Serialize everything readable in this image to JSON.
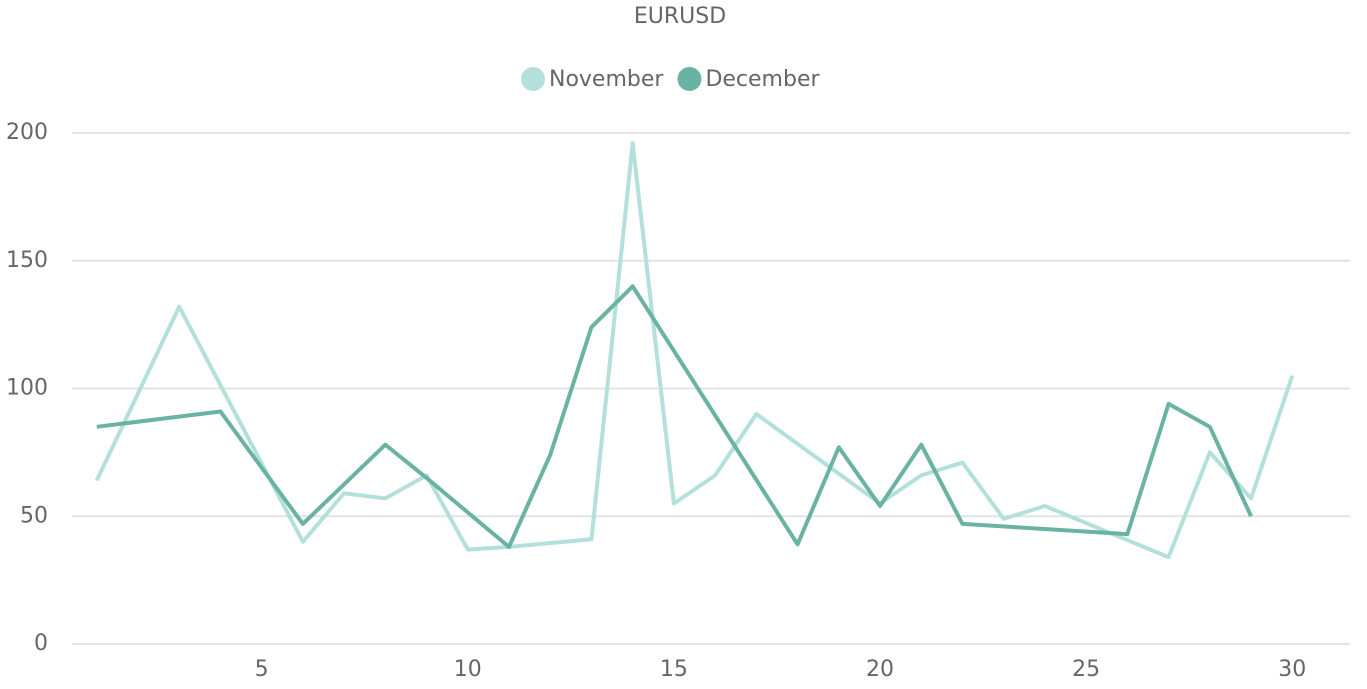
{
  "chart_data": {
    "type": "line",
    "title": "EURUSD",
    "series": [
      {
        "name": "November",
        "color": "#b3e0da",
        "x": [
          1,
          3,
          6,
          7,
          8,
          9,
          10,
          11,
          13,
          14,
          15,
          16,
          17,
          20,
          21,
          22,
          23,
          24,
          27,
          28,
          29,
          30
        ],
        "values": [
          64,
          132,
          40,
          59,
          57,
          66,
          37,
          38,
          41,
          196,
          55,
          66,
          90,
          55,
          66,
          71,
          49,
          54,
          34,
          75,
          57,
          105
        ]
      },
      {
        "name": "December",
        "color": "#6ab3a3",
        "x": [
          1,
          4,
          6,
          8,
          9,
          11,
          12,
          13,
          14,
          18,
          19,
          20,
          21,
          22,
          26,
          27,
          28,
          29
        ],
        "values": [
          85,
          91,
          47,
          78,
          65,
          38,
          74,
          124,
          140,
          39,
          77,
          54,
          78,
          47,
          43,
          94,
          85,
          50
        ]
      }
    ],
    "xlim": [
      0.4,
      31.4
    ],
    "xticks": [
      5,
      10,
      15,
      20,
      25,
      30
    ],
    "ylim": [
      0,
      200
    ],
    "yticks": [
      0,
      50,
      100,
      150,
      200
    ],
    "grid": true,
    "legend": "top"
  }
}
